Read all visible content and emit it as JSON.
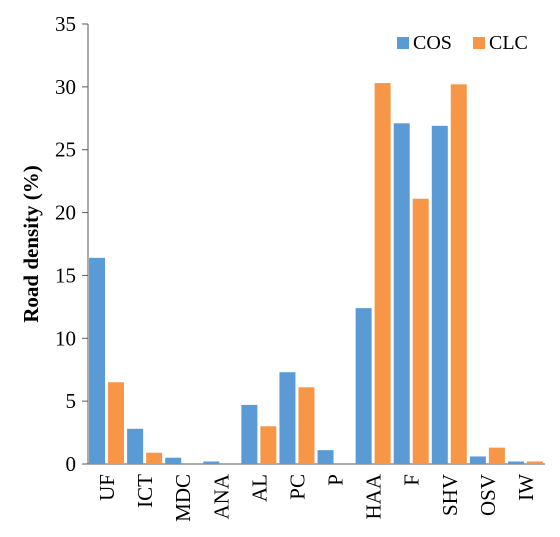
{
  "chart_data": {
    "type": "bar",
    "title": "",
    "xlabel": "",
    "ylabel": "Road density (%)",
    "ylim": [
      0,
      35
    ],
    "yticks": [
      0,
      5,
      10,
      15,
      20,
      25,
      30,
      35
    ],
    "grid": false,
    "legend_position": "top-right",
    "categories": [
      "UF",
      "ICT",
      "MDC",
      "ANA",
      "AL",
      "PC",
      "P",
      "HAA",
      "F",
      "SHV",
      "OSV",
      "IW"
    ],
    "series": [
      {
        "name": "COS",
        "color": "#5B9BD5",
        "values": [
          16.4,
          2.8,
          0.5,
          0.2,
          4.7,
          7.3,
          1.1,
          12.4,
          27.1,
          26.9,
          0.6,
          0.2
        ]
      },
      {
        "name": "CLC",
        "color": "#F79646",
        "values": [
          6.5,
          0.9,
          0.0,
          0.0,
          3.0,
          6.1,
          0.0,
          30.3,
          21.1,
          30.2,
          1.3,
          0.2
        ]
      }
    ]
  }
}
